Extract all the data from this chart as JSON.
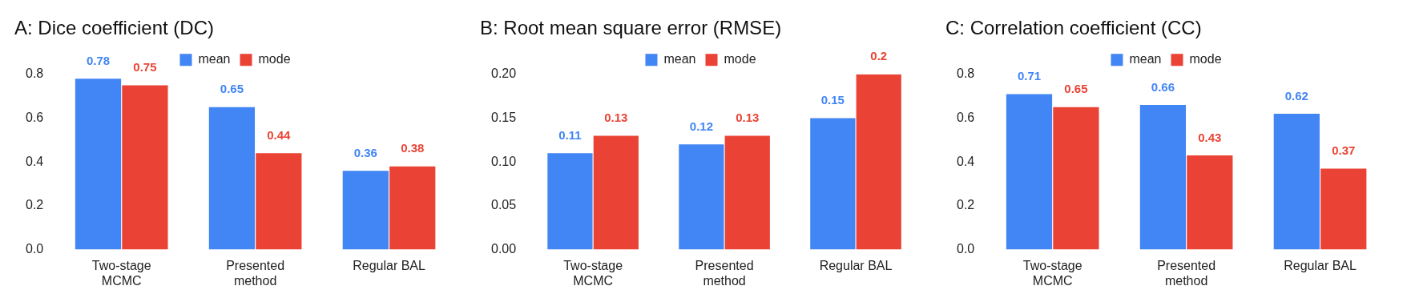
{
  "chart_data": [
    {
      "type": "bar",
      "title": "A: Dice coefficient (DC)",
      "categories": [
        "Two-stage MCMC",
        "Presented method",
        "Regular BAL"
      ],
      "series": [
        {
          "name": "mean",
          "color": "#4285f4",
          "values": [
            0.78,
            0.65,
            0.36
          ]
        },
        {
          "name": "mode",
          "color": "#ea4335",
          "values": [
            0.75,
            0.44,
            0.38
          ]
        }
      ],
      "ylim": [
        0,
        0.8
      ],
      "yticks": [
        {
          "value": 0,
          "label": "0.0"
        },
        0.2,
        0.4,
        0.6,
        0.8
      ],
      "grid": false,
      "legend": "top",
      "data_labels": true
    },
    {
      "type": "bar",
      "title": "B: Root mean square error (RMSE)",
      "categories": [
        "Two-stage MCMC",
        "Presented method",
        "Regular BAL"
      ],
      "series": [
        {
          "name": "mean",
          "color": "#4285f4",
          "values": [
            0.11,
            0.12,
            0.15
          ]
        },
        {
          "name": "mode",
          "color": "#ea4335",
          "values": [
            0.13,
            0.13,
            0.2
          ]
        }
      ],
      "ylim": [
        0,
        0.2
      ],
      "yticks": [
        {
          "value": 0,
          "label": "0.00"
        },
        0.05,
        {
          "value": 0.1,
          "label": "0.10"
        },
        0.15,
        {
          "value": 0.2,
          "label": "0.20"
        }
      ],
      "grid": false,
      "legend": "top",
      "data_labels": true
    },
    {
      "type": "bar",
      "title": "C: Correlation coefficient (CC)",
      "categories": [
        "Two-stage MCMC",
        "Presented method",
        "Regular BAL"
      ],
      "series": [
        {
          "name": "mean",
          "color": "#4285f4",
          "values": [
            0.71,
            0.66,
            0.62
          ]
        },
        {
          "name": "mode",
          "color": "#ea4335",
          "values": [
            0.65,
            0.43,
            0.37
          ]
        }
      ],
      "ylim": [
        0,
        0.8
      ],
      "yticks": [
        {
          "value": 0,
          "label": "0.0"
        },
        0.2,
        0.4,
        0.6,
        0.8
      ],
      "grid": false,
      "legend": "top",
      "data_labels": true
    }
  ]
}
